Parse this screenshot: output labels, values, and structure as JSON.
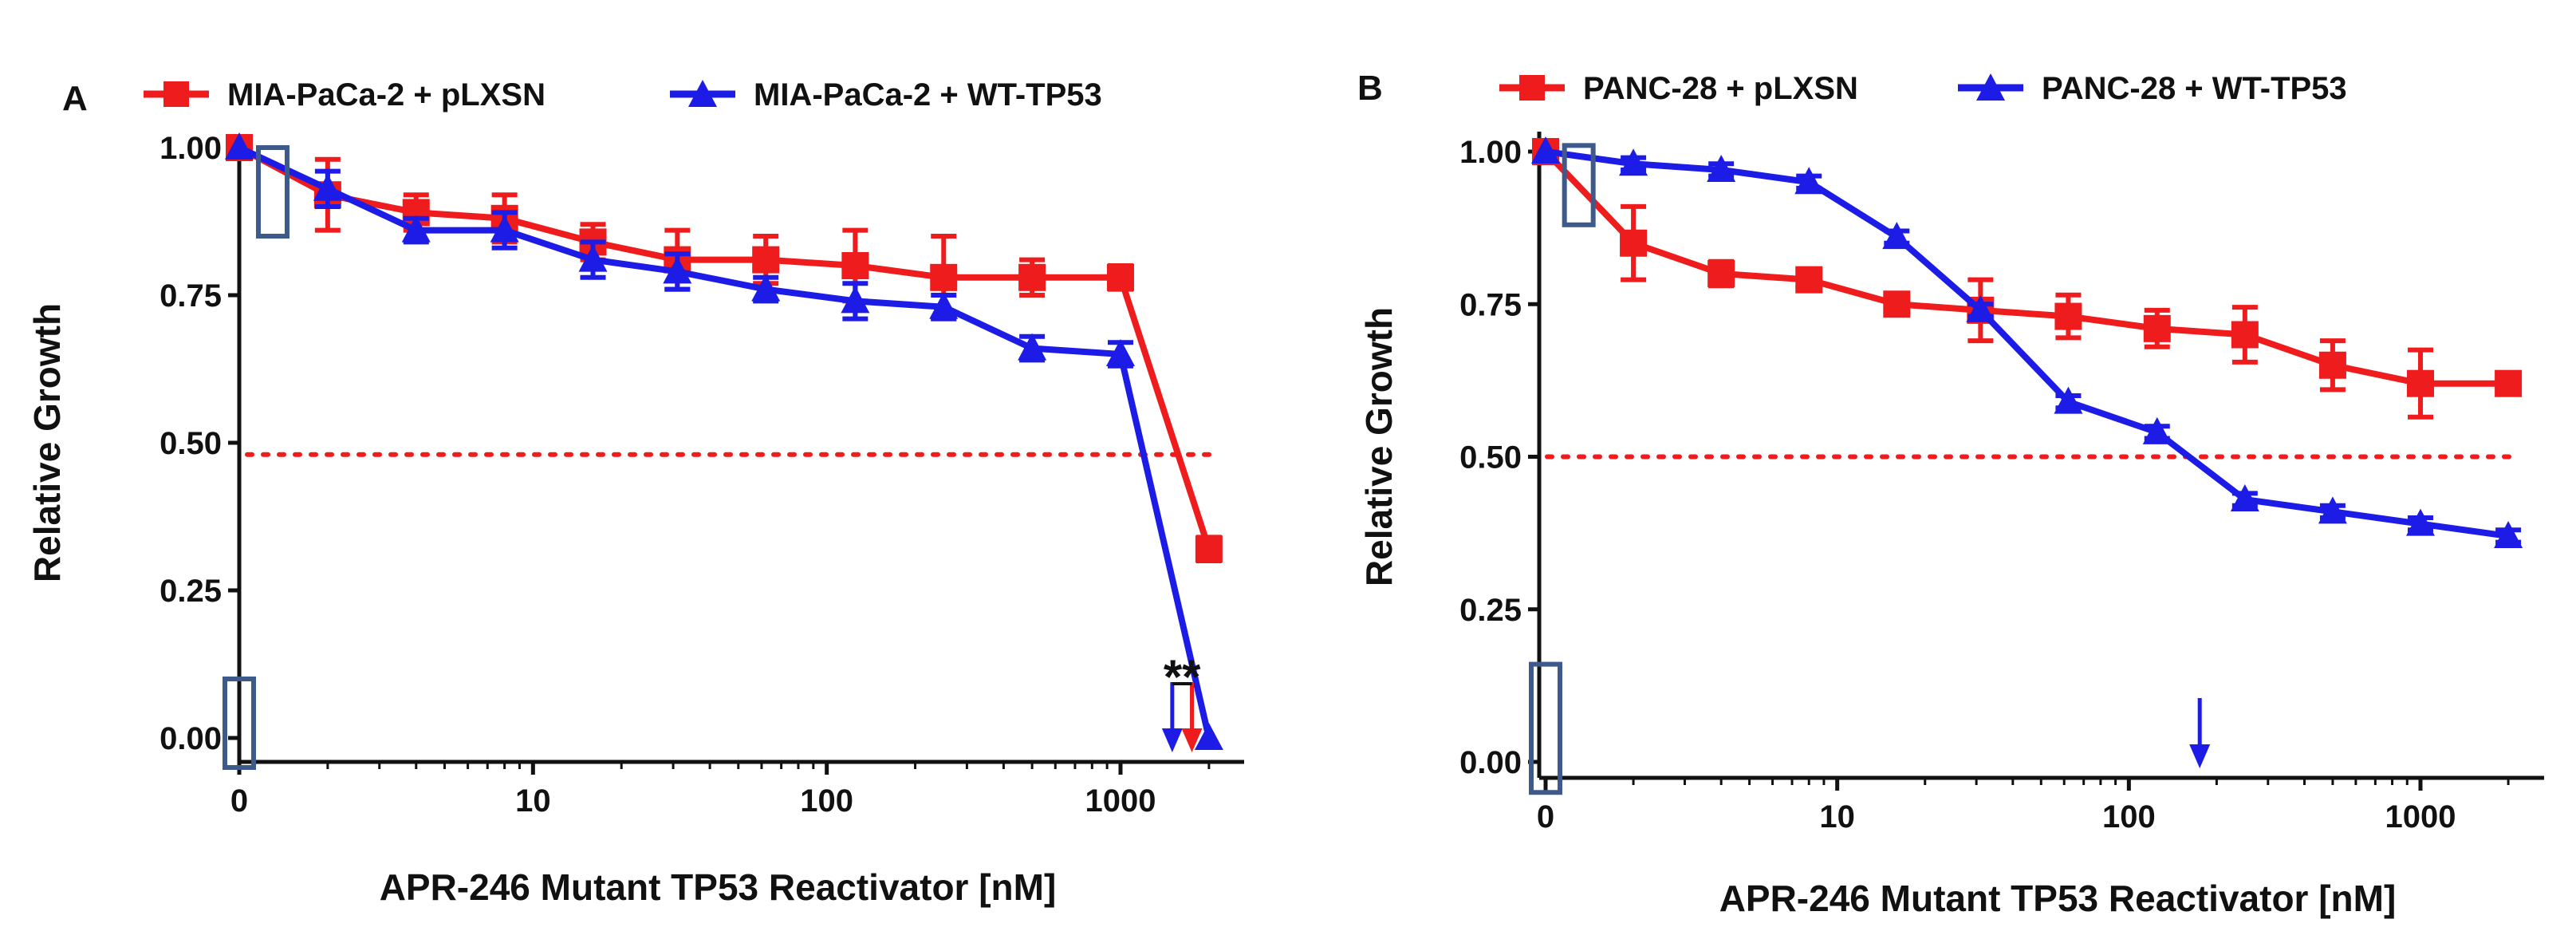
{
  "figure": {
    "panels": [
      "A",
      "B"
    ]
  },
  "chart_data": [
    {
      "panel": "A",
      "type": "line",
      "xscale": "log",
      "xlabel": "APR-246 Mutant TP53 Reactivator [nM]",
      "ylabel": "Relative Growth",
      "xlim": [
        1,
        2000
      ],
      "ylim": [
        0,
        1
      ],
      "xticks": [
        {
          "value": 1,
          "label": "0"
        },
        {
          "value": 10,
          "label": "10"
        },
        {
          "value": 100,
          "label": "100"
        },
        {
          "value": 1000,
          "label": "1000"
        }
      ],
      "yticks": [
        {
          "value": 0,
          "label": "0.00"
        },
        {
          "value": 0.25,
          "label": "0.25"
        },
        {
          "value": 0.5,
          "label": "0.50"
        },
        {
          "value": 0.75,
          "label": "0.75"
        },
        {
          "value": 1,
          "label": "1.00"
        }
      ],
      "reference_line": {
        "y": 0.48,
        "color": "#ee1c1c",
        "style": "dotted"
      },
      "series": [
        {
          "name": "MIA-PaCa-2 + pLXSN",
          "color": "#ee1c1c",
          "marker": "square",
          "x": [
            1,
            2,
            4,
            8,
            16,
            31,
            62,
            125,
            250,
            500,
            1000,
            2000
          ],
          "y": [
            1.0,
            0.92,
            0.89,
            0.88,
            0.84,
            0.81,
            0.81,
            0.8,
            0.78,
            0.78,
            0.78,
            0.32
          ],
          "err": [
            0.0,
            0.06,
            0.03,
            0.04,
            0.03,
            0.05,
            0.04,
            0.06,
            0.07,
            0.03,
            0.02,
            0.02
          ]
        },
        {
          "name": "MIA-PaCa-2 + WT-TP53",
          "color": "#1c1ce6",
          "marker": "triangle",
          "x": [
            1,
            2,
            4,
            8,
            16,
            31,
            62,
            125,
            250,
            500,
            1000,
            2000
          ],
          "y": [
            1.0,
            0.93,
            0.86,
            0.86,
            0.81,
            0.79,
            0.76,
            0.74,
            0.73,
            0.66,
            0.65,
            0.0
          ],
          "err": [
            0.0,
            0.03,
            0.02,
            0.03,
            0.03,
            0.03,
            0.02,
            0.03,
            0.02,
            0.02,
            0.02,
            0.0
          ]
        }
      ],
      "ic50_arrows": [
        {
          "series": "MIA-PaCa-2 + WT-TP53",
          "x": 1500,
          "color": "#1c1ce6"
        },
        {
          "series": "MIA-PaCa-2 + pLXSN",
          "x": 1750,
          "color": "#ee1c1c"
        }
      ],
      "significance": {
        "label": "**",
        "x": [
          1500,
          1750
        ]
      },
      "annotation_boxes": [
        {
          "x": 1.3,
          "y_range": [
            0.85,
            1.0
          ]
        },
        {
          "x": 1.0,
          "y_range": [
            -0.05,
            0.1
          ]
        }
      ]
    },
    {
      "panel": "B",
      "type": "line",
      "xscale": "log",
      "xlabel": "APR-246 Mutant TP53 Reactivator [nM]",
      "ylabel": "Relative Growth",
      "xlim": [
        1,
        2000
      ],
      "ylim": [
        0,
        1
      ],
      "xticks": [
        {
          "value": 1,
          "label": "0"
        },
        {
          "value": 10,
          "label": "10"
        },
        {
          "value": 100,
          "label": "100"
        },
        {
          "value": 1000,
          "label": "1000"
        }
      ],
      "yticks": [
        {
          "value": 0,
          "label": "0.00"
        },
        {
          "value": 0.25,
          "label": "0.25"
        },
        {
          "value": 0.5,
          "label": "0.50"
        },
        {
          "value": 0.75,
          "label": "0.75"
        },
        {
          "value": 1,
          "label": "1.00"
        }
      ],
      "reference_line": {
        "y": 0.5,
        "color": "#ee1c1c",
        "style": "dotted"
      },
      "series": [
        {
          "name": "PANC-28 + pLXSN",
          "color": "#ee1c1c",
          "marker": "square",
          "x": [
            1,
            2,
            4,
            8,
            16,
            31,
            62,
            125,
            250,
            500,
            1000,
            2000
          ],
          "y": [
            1.0,
            0.85,
            0.8,
            0.79,
            0.75,
            0.74,
            0.73,
            0.71,
            0.7,
            0.65,
            0.62,
            0.62
          ],
          "err": [
            0.0,
            0.06,
            0.02,
            0.015,
            0.015,
            0.05,
            0.035,
            0.03,
            0.045,
            0.04,
            0.055,
            0.01
          ]
        },
        {
          "name": "PANC-28 + WT-TP53",
          "color": "#1c1ce6",
          "marker": "triangle",
          "x": [
            1,
            2,
            4,
            8,
            16,
            31,
            62,
            125,
            250,
            500,
            1000,
            2000
          ],
          "y": [
            1.0,
            0.98,
            0.97,
            0.95,
            0.86,
            0.74,
            0.59,
            0.54,
            0.43,
            0.41,
            0.39,
            0.37
          ],
          "err": [
            0.0,
            0.01,
            0.01,
            0.01,
            0.01,
            0.01,
            0.01,
            0.01,
            0.01,
            0.01,
            0.01,
            0.01
          ]
        }
      ],
      "ic50_arrows": [
        {
          "series": "PANC-28 + WT-TP53",
          "x": 175,
          "color": "#1c1ce6"
        }
      ],
      "annotation_boxes": [
        {
          "x": 1.3,
          "y_range": [
            0.88,
            1.01
          ]
        },
        {
          "x": 1.0,
          "y_range": [
            -0.05,
            0.16
          ]
        }
      ]
    }
  ]
}
